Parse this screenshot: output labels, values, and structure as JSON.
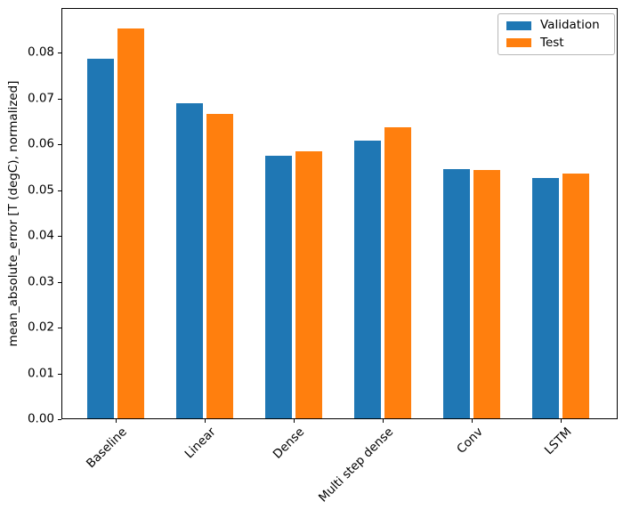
{
  "figure": {
    "background_color": "#ffffff",
    "spine_color": "#000000",
    "legend_border_color": "#b7b7b7"
  },
  "chart_data": {
    "type": "bar",
    "title": "",
    "xlabel": "",
    "ylabel": "mean_absolute_error [T (degC), normalized]",
    "categories": [
      "Baseline",
      "Linear",
      "Dense",
      "Multi step dense",
      "Conv",
      "LSTM"
    ],
    "series": [
      {
        "name": "Validation",
        "color": "#1f77b4",
        "values": [
          0.0785,
          0.0688,
          0.0573,
          0.0606,
          0.0545,
          0.0524
        ]
      },
      {
        "name": "Test",
        "color": "#ff7f0e",
        "values": [
          0.0852,
          0.0665,
          0.0584,
          0.0636,
          0.0543,
          0.0534
        ]
      }
    ],
    "ylim": [
      0,
      0.0898
    ],
    "yticks": [
      0.0,
      0.01,
      0.02,
      0.03,
      0.04,
      0.05,
      0.06,
      0.07,
      0.08
    ],
    "ytick_labels": [
      "0.00",
      "0.01",
      "0.02",
      "0.03",
      "0.04",
      "0.05",
      "0.06",
      "0.07",
      "0.08"
    ],
    "xtick_rotation": 45,
    "grid": false,
    "legend": {
      "position": "upper right",
      "entries": [
        "Validation",
        "Test"
      ]
    }
  }
}
